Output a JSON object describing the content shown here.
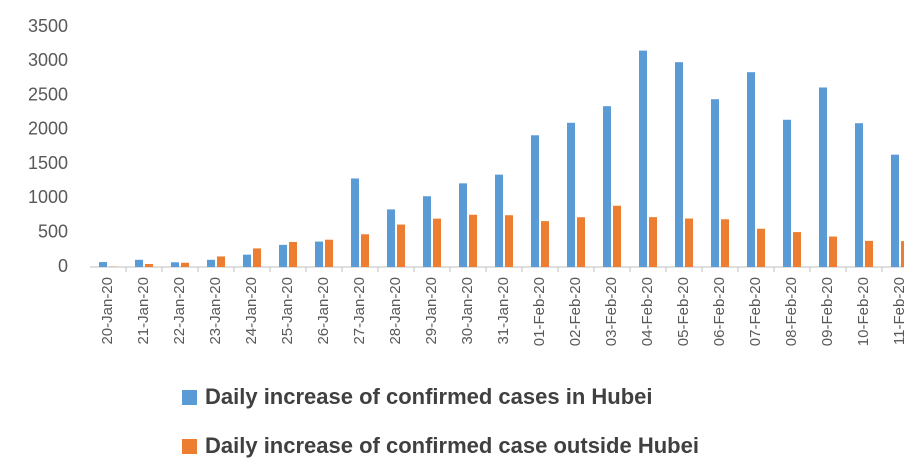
{
  "chart_data": {
    "type": "bar",
    "categories": [
      "20-Jan-20",
      "21-Jan-20",
      "22-Jan-20",
      "23-Jan-20",
      "24-Jan-20",
      "25-Jan-20",
      "26-Jan-20",
      "27-Jan-20",
      "28-Jan-20",
      "29-Jan-20",
      "30-Jan-20",
      "31-Jan-20",
      "01-Feb-20",
      "02-Feb-20",
      "03-Feb-20",
      "04-Feb-20",
      "05-Feb-20",
      "06-Feb-20",
      "07-Feb-20",
      "08-Feb-20",
      "09-Feb-20",
      "10-Feb-20",
      "11-Feb-20"
    ],
    "series": [
      {
        "name": "Daily increase of confirmed cases in Hubei",
        "color": "#5b9bd5",
        "values": [
          72,
          105,
          69,
          105,
          180,
          323,
          371,
          1291,
          840,
          1032,
          1220,
          1347,
          1921,
          2103,
          2345,
          3156,
          2987,
          2447,
          2841,
          2147,
          2618,
          2097,
          1638
        ]
      },
      {
        "name": "Daily increase of confirmed case outside Hubei",
        "color": "#ed7d31",
        "values": [
          5,
          44,
          62,
          154,
          271,
          365,
          398,
          477,
          619,
          705,
          762,
          755,
          669,
          726,
          893,
          727,
          707,
          696,
          558,
          509,
          444,
          381,
          377
        ]
      }
    ],
    "ylim": [
      0,
      3500
    ],
    "yticks": [
      0,
      500,
      1000,
      1500,
      2000,
      2500,
      3000,
      3500
    ],
    "grid": false
  }
}
